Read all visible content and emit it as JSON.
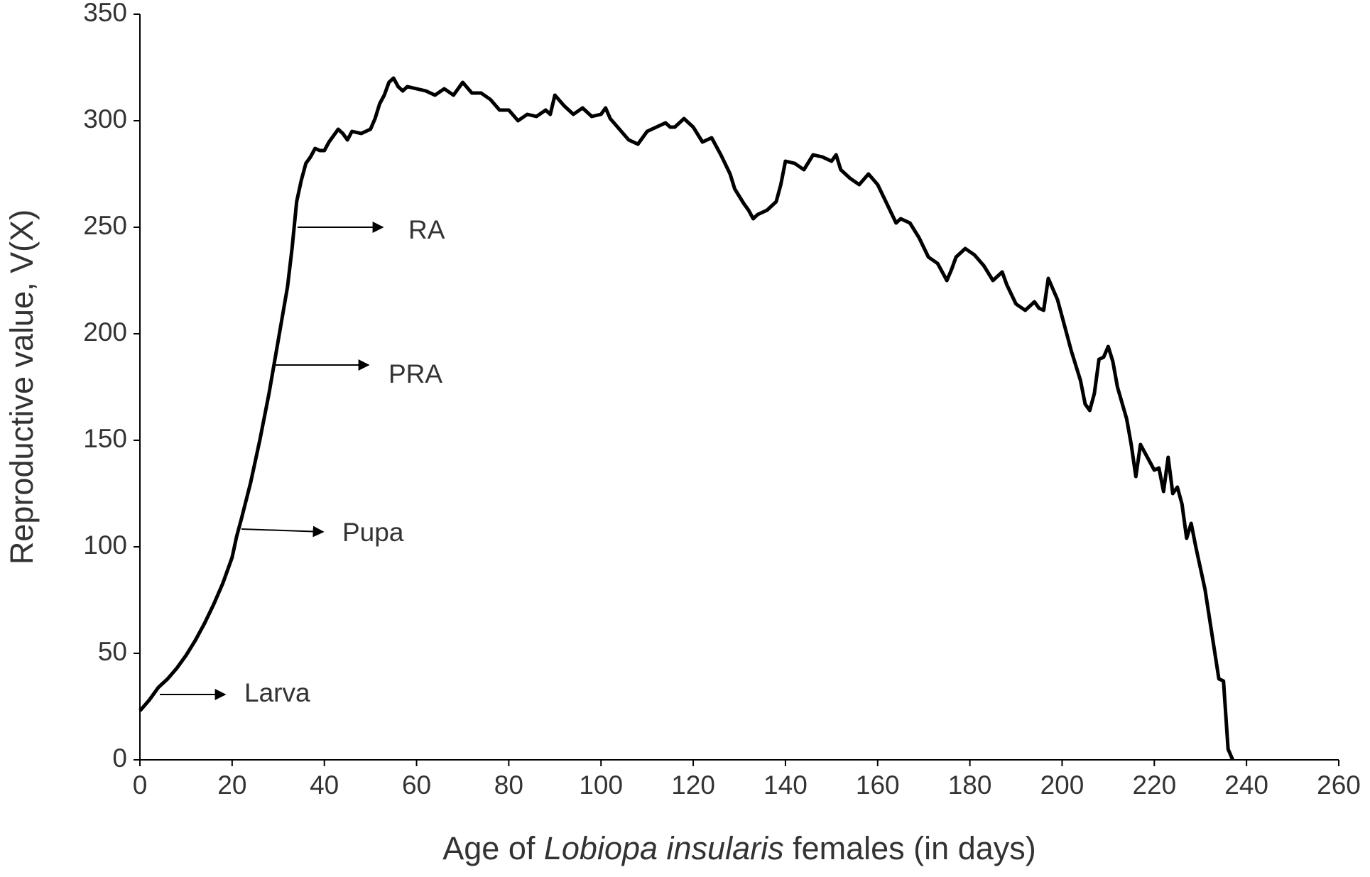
{
  "chart_data": {
    "type": "line",
    "ylabel": "Reproductive value, V(X)",
    "xlabel_parts": [
      "Age of ",
      "Lobiopa insularis",
      " females (in days)"
    ],
    "annotations": [
      "Larva",
      "Pupa",
      "PRA",
      "RA"
    ],
    "color": "#000000",
    "xlim": [
      0,
      260
    ],
    "xticks": [
      0,
      20,
      40,
      60,
      80,
      100,
      120,
      140,
      160,
      180,
      200,
      220,
      240,
      260
    ],
    "ylim": [
      0,
      350
    ],
    "yticks": [
      0,
      50,
      100,
      150,
      200,
      250,
      300,
      350
    ],
    "grid": false,
    "x": [
      0,
      2,
      4,
      6,
      8,
      10,
      12,
      14,
      16,
      18,
      20,
      21,
      22,
      24,
      26,
      28,
      30,
      32,
      33,
      34,
      35,
      36,
      37,
      38,
      39,
      40,
      41,
      42,
      43,
      44,
      45,
      46,
      48,
      50,
      51,
      52,
      53,
      54,
      55,
      56,
      57,
      58,
      60,
      62,
      64,
      66,
      68,
      70,
      72,
      74,
      76,
      78,
      80,
      82,
      84,
      86,
      88,
      89,
      90,
      92,
      94,
      96,
      98,
      100,
      101,
      102,
      104,
      106,
      108,
      110,
      112,
      114,
      115,
      116,
      118,
      120,
      122,
      124,
      126,
      128,
      129,
      131,
      132,
      133,
      134,
      136,
      138,
      139,
      140,
      142,
      144,
      146,
      148,
      150,
      151,
      152,
      154,
      156,
      158,
      160,
      162,
      164,
      165,
      167,
      169,
      171,
      173,
      175,
      176,
      177,
      179,
      181,
      183,
      185,
      187,
      188,
      190,
      192,
      194,
      195,
      196,
      197,
      199,
      200,
      202,
      204,
      205,
      206,
      207,
      208,
      209,
      210,
      211,
      212,
      214,
      215,
      216,
      217,
      218,
      220,
      221,
      222,
      223,
      224,
      225,
      226,
      227,
      228,
      229,
      230,
      231,
      232,
      233,
      234,
      235,
      236,
      237
    ],
    "values": [
      23,
      28,
      34,
      38,
      43,
      49,
      56,
      64,
      73,
      83,
      95,
      105,
      113,
      130,
      150,
      172,
      197,
      222,
      240,
      262,
      272,
      280,
      283,
      287,
      286,
      286,
      290,
      293,
      296,
      294,
      291,
      295,
      294,
      296,
      301,
      308,
      312,
      318,
      320,
      316,
      314,
      316,
      315,
      314,
      312,
      315,
      312,
      318,
      313,
      313,
      310,
      305,
      305,
      300,
      303,
      302,
      305,
      303,
      312,
      307,
      303,
      306,
      302,
      303,
      306,
      301,
      296,
      291,
      289,
      295,
      297,
      299,
      297,
      297,
      301,
      297,
      290,
      292,
      284,
      275,
      268,
      261,
      258,
      254,
      256,
      258,
      262,
      270,
      281,
      280,
      277,
      284,
      283,
      281,
      284,
      277,
      273,
      270,
      275,
      270,
      261,
      252,
      254,
      252,
      245,
      236,
      233,
      225,
      230,
      236,
      240,
      237,
      232,
      225,
      229,
      223,
      214,
      211,
      215,
      212,
      211,
      226,
      216,
      208,
      192,
      178,
      167,
      164,
      172,
      188,
      189,
      194,
      187,
      175,
      160,
      148,
      133,
      148,
      144,
      136,
      137,
      126,
      142,
      125,
      128,
      120,
      104,
      111,
      100,
      90,
      80,
      66,
      52,
      38,
      37,
      5,
      0
    ]
  }
}
